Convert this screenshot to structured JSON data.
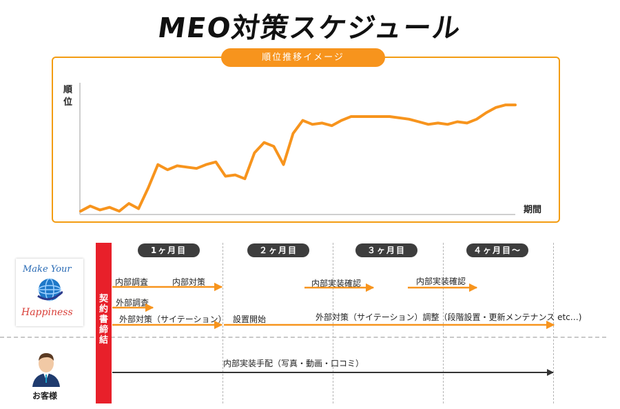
{
  "title": "MEO対策スケジュール",
  "chart": {
    "banner": "順位推移イメージ",
    "y_label": "順位",
    "x_label": "期間",
    "line_color": "#f7941d"
  },
  "chart_data": {
    "type": "line",
    "title": "順位推移イメージ",
    "xlabel": "期間",
    "ylabel": "順位",
    "ylim": [
      0,
      100
    ],
    "grid": false,
    "series": [
      {
        "values": [
          2,
          6,
          3,
          5,
          2,
          8,
          4,
          20,
          38,
          34,
          37,
          36,
          35,
          38,
          40,
          29,
          30,
          27,
          47,
          55,
          52,
          38,
          62,
          72,
          69,
          70,
          68,
          72,
          75,
          75,
          75,
          75,
          75,
          74,
          73,
          71,
          69,
          70,
          69,
          71,
          70,
          73,
          78,
          82,
          84,
          84
        ]
      }
    ]
  },
  "phases": [
    "1ヶ月目",
    "２ヶ月目",
    "３ヶ月目",
    "４ヶ月目～"
  ],
  "contract_label": "契約書締結",
  "logo": {
    "line1": "Make Your",
    "line2": "Happiness"
  },
  "customer_label": "お客様",
  "tasks": {
    "internal_survey": "内部調査",
    "internal_measures": "内部対策",
    "external_survey": "外部調査",
    "external_measures": "外部対策（サイテーション）",
    "setup_start": "設置開始",
    "impl_check_1": "内部実装確認",
    "impl_check_2": "内部実装確認",
    "external_adjust": "外部対策（サイテーション）調整（段階設置・更新メンテナンス etc…)",
    "customer_task": "内部実装手配（写真・動画・口コミ）"
  },
  "colors": {
    "accent": "#f7941d",
    "contract": "#e8202a",
    "phase_pill": "#3d3d3d",
    "customer_arrow": "#333333"
  }
}
